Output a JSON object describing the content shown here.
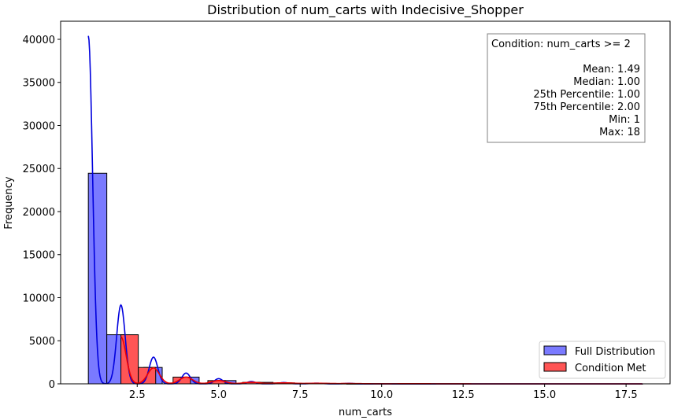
{
  "chart_data": {
    "type": "bar",
    "title": "Distribution of num_carts with Indecisive_Shopper",
    "xlabel": "num_carts",
    "ylabel": "Frequency",
    "xlim": [
      0.15,
      18.85
    ],
    "ylim": [
      0,
      42100
    ],
    "x_ticks": [
      2.5,
      5.0,
      7.5,
      10.0,
      12.5,
      15.0,
      17.5
    ],
    "x_tick_labels": [
      "2.5",
      "5.0",
      "7.5",
      "10.0",
      "12.5",
      "15.0",
      "17.5"
    ],
    "y_ticks": [
      0,
      5000,
      10000,
      15000,
      20000,
      25000,
      30000,
      35000,
      40000
    ],
    "y_tick_labels": [
      "0",
      "5000",
      "10000",
      "15000",
      "20000",
      "25000",
      "30000",
      "35000",
      "40000"
    ],
    "grid": false,
    "legend_position": "bottom-right",
    "series": [
      {
        "name": "Full Distribution",
        "color": "#7a7aff",
        "kde_color": "#0000dd",
        "bins": [
          {
            "x0": 1.0,
            "x1": 1.567,
            "value": 24450
          },
          {
            "x0": 1.567,
            "x1": 2.133,
            "value": 5700
          },
          {
            "x0": 2.133,
            "x1": 2.7,
            "value": 0
          },
          {
            "x0": 2.7,
            "x1": 3.267,
            "value": 1900
          },
          {
            "x0": 3.267,
            "x1": 3.833,
            "value": 0
          },
          {
            "x0": 3.833,
            "x1": 4.4,
            "value": 780
          },
          {
            "x0": 4.4,
            "x1": 4.967,
            "value": 0
          },
          {
            "x0": 4.967,
            "x1": 5.533,
            "value": 380
          },
          {
            "x0": 5.533,
            "x1": 6.1,
            "value": 0
          },
          {
            "x0": 6.1,
            "x1": 6.667,
            "value": 170
          },
          {
            "x0": 6.667,
            "x1": 7.233,
            "value": 110
          },
          {
            "x0": 7.233,
            "x1": 7.8,
            "value": 60
          },
          {
            "x0": 7.8,
            "x1": 8.367,
            "value": 50
          },
          {
            "x0": 8.367,
            "x1": 8.933,
            "value": 30
          },
          {
            "x0": 8.933,
            "x1": 9.5,
            "value": 20
          },
          {
            "x0": 9.5,
            "x1": 10.067,
            "value": 15
          },
          {
            "x0": 10.067,
            "x1": 10.633,
            "value": 10
          },
          {
            "x0": 10.633,
            "x1": 11.2,
            "value": 8
          },
          {
            "x0": 11.2,
            "x1": 11.767,
            "value": 6
          },
          {
            "x0": 11.767,
            "x1": 12.333,
            "value": 5
          },
          {
            "x0": 12.333,
            "x1": 12.9,
            "value": 4
          },
          {
            "x0": 12.9,
            "x1": 13.467,
            "value": 3
          },
          {
            "x0": 13.467,
            "x1": 14.033,
            "value": 3
          },
          {
            "x0": 14.033,
            "x1": 14.6,
            "value": 2
          },
          {
            "x0": 14.6,
            "x1": 15.167,
            "value": 2
          },
          {
            "x0": 15.167,
            "x1": 15.733,
            "value": 1
          },
          {
            "x0": 15.733,
            "x1": 16.3,
            "value": 1
          },
          {
            "x0": 16.3,
            "x1": 16.867,
            "value": 1
          },
          {
            "x0": 16.867,
            "x1": 17.433,
            "value": 1
          },
          {
            "x0": 17.433,
            "x1": 18.0,
            "value": 1
          }
        ],
        "kde_peaks": [
          {
            "x": 1.0,
            "y": 40400,
            "sigma": 0.13
          },
          {
            "x": 2.0,
            "y": 9150,
            "sigma": 0.13
          },
          {
            "x": 3.0,
            "y": 3100,
            "sigma": 0.13
          },
          {
            "x": 4.0,
            "y": 1250,
            "sigma": 0.13
          },
          {
            "x": 5.0,
            "y": 600,
            "sigma": 0.13
          },
          {
            "x": 6.0,
            "y": 260,
            "sigma": 0.13
          },
          {
            "x": 7.0,
            "y": 150,
            "sigma": 0.14
          },
          {
            "x": 8.0,
            "y": 80,
            "sigma": 0.15
          },
          {
            "x": 9.0,
            "y": 50,
            "sigma": 0.16
          }
        ]
      },
      {
        "name": "Condition Met",
        "color": "#ff5555",
        "kde_color": "#ee0000",
        "bins": [
          {
            "x0": 2.0,
            "x1": 2.533,
            "value": 5700
          },
          {
            "x0": 2.533,
            "x1": 3.067,
            "value": 1900
          },
          {
            "x0": 3.067,
            "x1": 3.6,
            "value": 0
          },
          {
            "x0": 3.6,
            "x1": 4.133,
            "value": 780
          },
          {
            "x0": 4.133,
            "x1": 4.667,
            "value": 0
          },
          {
            "x0": 4.667,
            "x1": 5.2,
            "value": 380
          },
          {
            "x0": 5.2,
            "x1": 5.733,
            "value": 0
          },
          {
            "x0": 5.733,
            "x1": 6.267,
            "value": 170
          },
          {
            "x0": 6.267,
            "x1": 6.8,
            "value": 0
          },
          {
            "x0": 6.8,
            "x1": 7.333,
            "value": 110
          },
          {
            "x0": 7.333,
            "x1": 7.867,
            "value": 0
          },
          {
            "x0": 7.867,
            "x1": 8.4,
            "value": 60
          },
          {
            "x0": 8.4,
            "x1": 8.933,
            "value": 40
          },
          {
            "x0": 8.933,
            "x1": 9.467,
            "value": 20
          },
          {
            "x0": 9.467,
            "x1": 10.0,
            "value": 15
          },
          {
            "x0": 10.0,
            "x1": 10.533,
            "value": 12
          },
          {
            "x0": 10.533,
            "x1": 11.067,
            "value": 8
          },
          {
            "x0": 11.067,
            "x1": 11.6,
            "value": 6
          },
          {
            "x0": 11.6,
            "x1": 12.133,
            "value": 5
          },
          {
            "x0": 12.133,
            "x1": 12.667,
            "value": 4
          },
          {
            "x0": 12.667,
            "x1": 13.2,
            "value": 3
          },
          {
            "x0": 13.2,
            "x1": 13.733,
            "value": 3
          },
          {
            "x0": 13.733,
            "x1": 14.267,
            "value": 2
          },
          {
            "x0": 14.267,
            "x1": 14.8,
            "value": 2
          },
          {
            "x0": 14.8,
            "x1": 15.333,
            "value": 1
          },
          {
            "x0": 15.333,
            "x1": 15.867,
            "value": 1
          },
          {
            "x0": 15.867,
            "x1": 16.4,
            "value": 1
          },
          {
            "x0": 16.4,
            "x1": 16.933,
            "value": 1
          },
          {
            "x0": 16.933,
            "x1": 17.467,
            "value": 1
          },
          {
            "x0": 17.467,
            "x1": 18.0,
            "value": 1
          }
        ],
        "kde_peaks": [
          {
            "x": 2.0,
            "y": 5450,
            "sigma": 0.16
          },
          {
            "x": 3.0,
            "y": 1850,
            "sigma": 0.18
          },
          {
            "x": 4.0,
            "y": 780,
            "sigma": 0.2
          },
          {
            "x": 5.0,
            "y": 380,
            "sigma": 0.22
          },
          {
            "x": 6.0,
            "y": 180,
            "sigma": 0.25
          },
          {
            "x": 7.0,
            "y": 110,
            "sigma": 0.3
          },
          {
            "x": 8.0,
            "y": 60,
            "sigma": 0.35
          },
          {
            "x": 9.0,
            "y": 35,
            "sigma": 0.4
          },
          {
            "x": 11.0,
            "y": 15,
            "sigma": 0.8
          }
        ]
      }
    ],
    "stats_box": {
      "condition": "Condition: num_carts >= 2",
      "lines": [
        "Mean: 1.49",
        "Median: 1.00",
        "25th Percentile: 1.00",
        "75th Percentile: 2.00",
        "Min: 1",
        "Max: 18"
      ]
    }
  }
}
